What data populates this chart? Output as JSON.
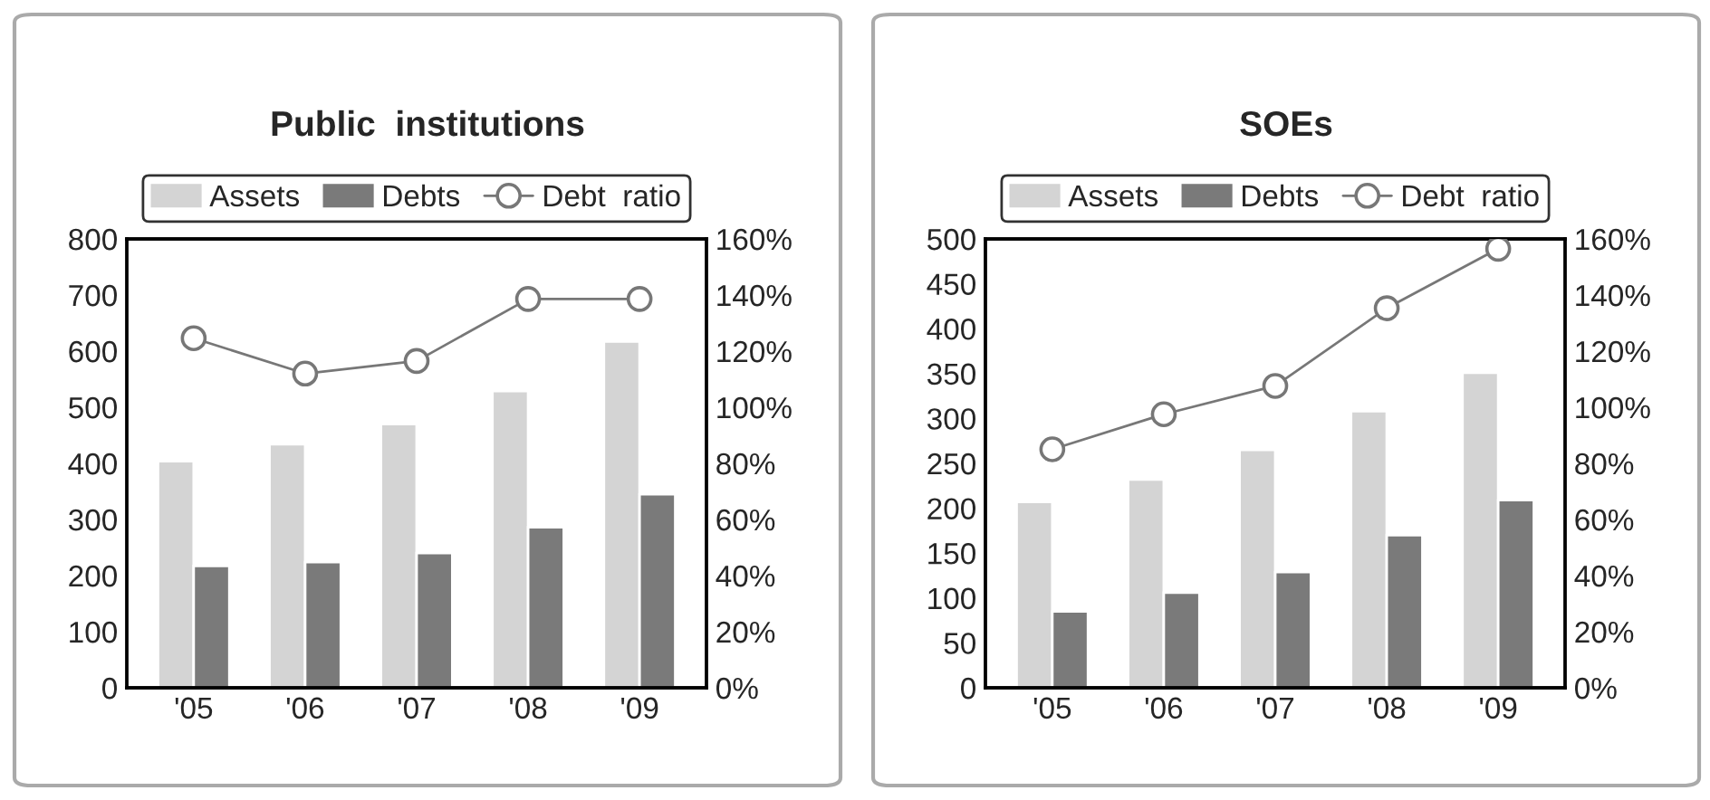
{
  "chart_data": [
    {
      "type": "bar",
      "title": "Public  institutions",
      "categories": [
        "'05",
        "'06",
        "'07",
        "'08",
        "'09"
      ],
      "series": [
        {
          "name": "Assets",
          "color": "#d4d4d4",
          "values": [
            404,
            434,
            470,
            529,
            617
          ]
        },
        {
          "name": "Debts",
          "color": "#7a7a7a",
          "values": [
            217,
            224,
            240,
            286,
            345
          ]
        },
        {
          "name": "Debt  ratio",
          "type": "line",
          "axis": "y2",
          "color": "#777777",
          "values": [
            124.6,
            112,
            116.5,
            138.6,
            138.6
          ]
        }
      ],
      "ylim": [
        0,
        800
      ],
      "yticks": [
        0,
        100,
        200,
        300,
        400,
        500,
        600,
        700,
        800
      ],
      "y2lim": [
        0,
        160
      ],
      "y2ticks": [
        {
          "value": 0,
          "label": "0%"
        },
        {
          "value": 20,
          "label": "20%"
        },
        {
          "value": 40,
          "label": "40%"
        },
        {
          "value": 60,
          "label": "60%"
        },
        {
          "value": 80,
          "label": "80%"
        },
        {
          "value": 100,
          "label": "100%"
        },
        {
          "value": 120,
          "label": "120%"
        },
        {
          "value": 140,
          "label": "140%"
        },
        {
          "value": 160,
          "label": "160%"
        }
      ],
      "marker": "circle",
      "legend": "top",
      "grid": false
    },
    {
      "type": "bar",
      "title": "SOEs",
      "categories": [
        "'05",
        "'06",
        "'07",
        "'08",
        "'09"
      ],
      "series": [
        {
          "name": "Assets",
          "color": "#d4d4d4",
          "values": [
            207,
            232,
            265,
            308,
            351
          ]
        },
        {
          "name": "Debts",
          "color": "#7a7a7a",
          "values": [
            85,
            106,
            129,
            170,
            209
          ]
        },
        {
          "name": "Debt  ratio",
          "type": "line",
          "axis": "y2",
          "color": "#777777",
          "values": [
            85,
            97.5,
            107.6,
            135.3,
            156.5
          ]
        }
      ],
      "ylim": [
        0,
        500
      ],
      "yticks": [
        0,
        50,
        100,
        150,
        200,
        250,
        300,
        350,
        400,
        450,
        500
      ],
      "y2lim": [
        0,
        160
      ],
      "y2ticks": [
        {
          "value": 0,
          "label": "0%"
        },
        {
          "value": 20,
          "label": "20%"
        },
        {
          "value": 40,
          "label": "40%"
        },
        {
          "value": 60,
          "label": "60%"
        },
        {
          "value": 80,
          "label": "80%"
        },
        {
          "value": 100,
          "label": "100%"
        },
        {
          "value": 120,
          "label": "120%"
        },
        {
          "value": 140,
          "label": "140%"
        },
        {
          "value": 160,
          "label": "160%"
        }
      ],
      "marker": "circle",
      "legend": "top",
      "grid": false
    }
  ]
}
